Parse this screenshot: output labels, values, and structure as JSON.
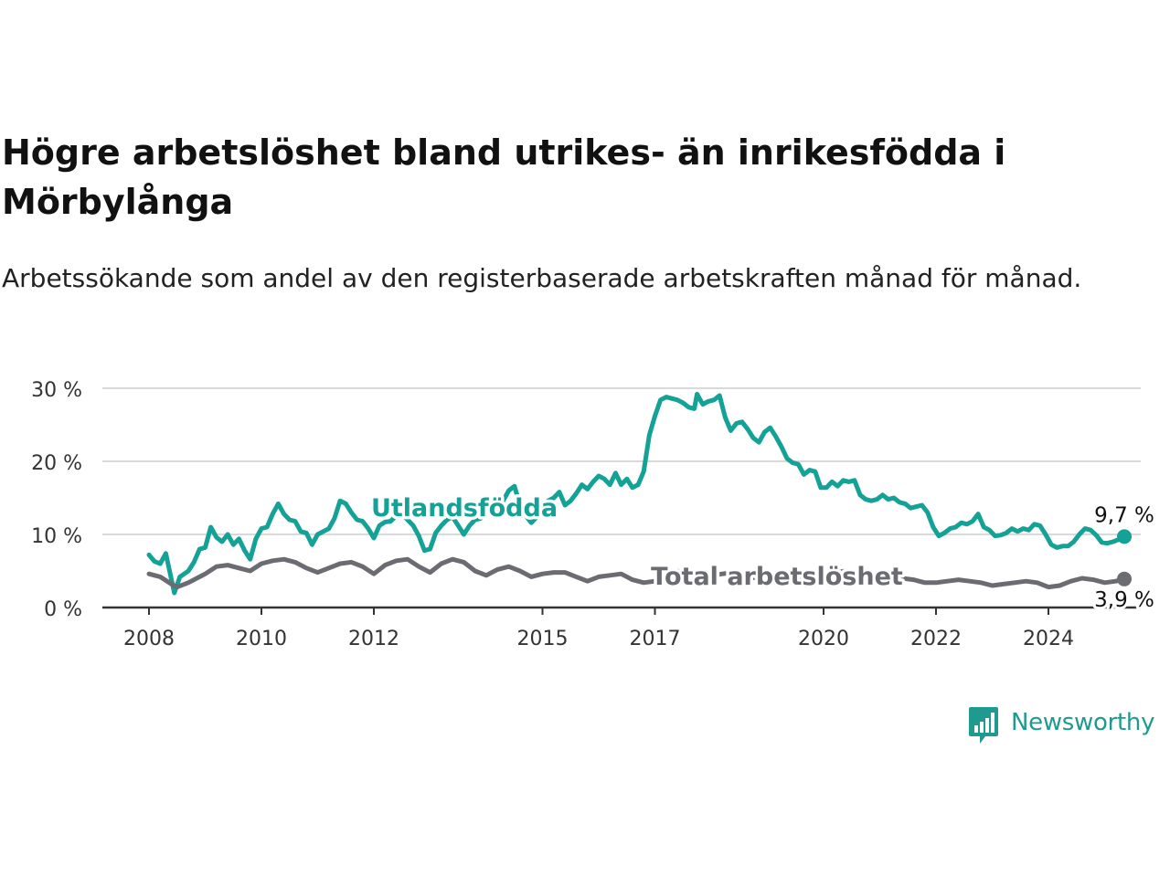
{
  "title": "Högre arbetslöshet bland utrikes- än inrikesfödda i Mörbylånga",
  "subtitle": "Arbetssökande som andel av den registerbaserade arbetskraften månad för månad.",
  "brand": {
    "name": "Newsworthy",
    "color": "#1f9a8e",
    "icon": "newsworthy-logo-icon"
  },
  "chart_data": {
    "type": "line",
    "ylim": [
      0,
      30
    ],
    "y_ticks": [
      0,
      10,
      20,
      30
    ],
    "y_tick_labels": [
      "0 %",
      "10 %",
      "20 %",
      "30 %"
    ],
    "xlim": [
      2008,
      2024.9
    ],
    "x_ticks": [
      2008,
      2010,
      2012,
      2015,
      2017,
      2020,
      2022,
      2024
    ],
    "x_tick_labels": [
      "2008",
      "2010",
      "2012",
      "2015",
      "2017",
      "2020",
      "2022",
      "2024"
    ],
    "grid": true,
    "series": [
      {
        "name": "Utlandsfödda",
        "color": "#14a196",
        "end_label": "9,7 %",
        "points": [
          [
            2008.0,
            7.2
          ],
          [
            2008.1,
            6.3
          ],
          [
            2008.2,
            6.0
          ],
          [
            2008.3,
            7.4
          ],
          [
            2008.4,
            3.8
          ],
          [
            2008.45,
            2.0
          ],
          [
            2008.55,
            4.2
          ],
          [
            2008.7,
            5.0
          ],
          [
            2008.8,
            6.2
          ],
          [
            2008.9,
            8.0
          ],
          [
            2009.0,
            8.2
          ],
          [
            2009.1,
            11.0
          ],
          [
            2009.2,
            9.6
          ],
          [
            2009.3,
            9.0
          ],
          [
            2009.4,
            10.0
          ],
          [
            2009.5,
            8.6
          ],
          [
            2009.6,
            9.4
          ],
          [
            2009.7,
            7.8
          ],
          [
            2009.8,
            6.6
          ],
          [
            2009.9,
            9.4
          ],
          [
            2010.0,
            10.8
          ],
          [
            2010.1,
            11.0
          ],
          [
            2010.2,
            12.8
          ],
          [
            2010.3,
            14.2
          ],
          [
            2010.4,
            12.8
          ],
          [
            2010.5,
            12.0
          ],
          [
            2010.6,
            11.8
          ],
          [
            2010.7,
            10.4
          ],
          [
            2010.8,
            10.2
          ],
          [
            2010.9,
            8.6
          ],
          [
            2011.0,
            10.0
          ],
          [
            2011.1,
            10.4
          ],
          [
            2011.2,
            10.8
          ],
          [
            2011.3,
            12.2
          ],
          [
            2011.4,
            14.6
          ],
          [
            2011.5,
            14.2
          ],
          [
            2011.6,
            13.0
          ],
          [
            2011.7,
            12.0
          ],
          [
            2011.8,
            11.8
          ],
          [
            2011.9,
            10.8
          ],
          [
            2012.0,
            9.5
          ],
          [
            2012.1,
            11.2
          ],
          [
            2012.2,
            11.7
          ],
          [
            2012.3,
            11.8
          ],
          [
            2012.4,
            12.6
          ],
          [
            2012.5,
            12.8
          ],
          [
            2012.6,
            12.0
          ],
          [
            2012.7,
            11.2
          ],
          [
            2012.8,
            9.8
          ],
          [
            2012.9,
            7.8
          ],
          [
            2013.0,
            8.0
          ],
          [
            2013.1,
            10.2
          ],
          [
            2013.2,
            11.2
          ],
          [
            2013.3,
            12.0
          ],
          [
            2013.4,
            12.4
          ],
          [
            2013.5,
            11.2
          ],
          [
            2013.6,
            10.0
          ],
          [
            2013.7,
            11.2
          ],
          [
            2013.8,
            12.0
          ],
          [
            2013.9,
            12.2
          ],
          [
            2014.0,
            13.0
          ],
          [
            2014.1,
            13.2
          ],
          [
            2014.2,
            13.8
          ],
          [
            2014.3,
            14.6
          ],
          [
            2014.4,
            16.0
          ],
          [
            2014.5,
            16.6
          ],
          [
            2014.6,
            14.0
          ],
          [
            2014.7,
            12.6
          ],
          [
            2014.8,
            11.6
          ],
          [
            2014.9,
            12.4
          ],
          [
            2015.0,
            13.2
          ],
          [
            2015.1,
            14.6
          ],
          [
            2015.2,
            15.0
          ],
          [
            2015.3,
            15.8
          ],
          [
            2015.4,
            14.0
          ],
          [
            2015.5,
            14.6
          ],
          [
            2015.6,
            15.6
          ],
          [
            2015.7,
            16.8
          ],
          [
            2015.8,
            16.2
          ],
          [
            2015.9,
            17.2
          ],
          [
            2016.0,
            18.0
          ],
          [
            2016.1,
            17.6
          ],
          [
            2016.2,
            16.8
          ],
          [
            2016.3,
            18.4
          ],
          [
            2016.4,
            16.8
          ],
          [
            2016.5,
            17.6
          ],
          [
            2016.6,
            16.4
          ],
          [
            2016.7,
            16.8
          ],
          [
            2016.8,
            18.6
          ],
          [
            2016.9,
            23.6
          ],
          [
            2017.0,
            26.2
          ],
          [
            2017.1,
            28.4
          ],
          [
            2017.2,
            28.8
          ],
          [
            2017.3,
            28.6
          ],
          [
            2017.4,
            28.4
          ],
          [
            2017.5,
            28.0
          ],
          [
            2017.6,
            27.4
          ],
          [
            2017.7,
            27.2
          ],
          [
            2017.75,
            29.2
          ],
          [
            2017.85,
            27.8
          ],
          [
            2017.95,
            28.2
          ],
          [
            2018.05,
            28.4
          ],
          [
            2018.15,
            29.0
          ],
          [
            2018.25,
            26.0
          ],
          [
            2018.35,
            24.2
          ],
          [
            2018.45,
            25.2
          ],
          [
            2018.55,
            25.4
          ],
          [
            2018.65,
            24.4
          ],
          [
            2018.75,
            23.2
          ],
          [
            2018.85,
            22.6
          ],
          [
            2018.95,
            24.0
          ],
          [
            2019.05,
            24.6
          ],
          [
            2019.15,
            23.4
          ],
          [
            2019.25,
            22.0
          ],
          [
            2019.35,
            20.4
          ],
          [
            2019.45,
            19.8
          ],
          [
            2019.55,
            19.6
          ],
          [
            2019.65,
            18.2
          ],
          [
            2019.75,
            18.8
          ],
          [
            2019.85,
            18.6
          ],
          [
            2019.95,
            16.4
          ],
          [
            2020.05,
            16.4
          ],
          [
            2020.15,
            17.2
          ],
          [
            2020.25,
            16.6
          ],
          [
            2020.35,
            17.4
          ],
          [
            2020.45,
            17.2
          ],
          [
            2020.55,
            17.4
          ],
          [
            2020.65,
            15.4
          ],
          [
            2020.75,
            14.8
          ],
          [
            2020.85,
            14.6
          ],
          [
            2020.95,
            14.8
          ],
          [
            2021.05,
            15.4
          ],
          [
            2021.15,
            14.8
          ],
          [
            2021.25,
            15.0
          ],
          [
            2021.35,
            14.4
          ],
          [
            2021.45,
            14.2
          ],
          [
            2021.55,
            13.6
          ],
          [
            2021.65,
            13.8
          ],
          [
            2021.75,
            14.0
          ],
          [
            2021.85,
            13.0
          ],
          [
            2021.95,
            11.0
          ],
          [
            2022.05,
            9.8
          ],
          [
            2022.15,
            10.2
          ],
          [
            2022.25,
            10.8
          ],
          [
            2022.35,
            11.0
          ],
          [
            2022.45,
            11.6
          ],
          [
            2022.55,
            11.4
          ],
          [
            2022.65,
            11.8
          ],
          [
            2022.75,
            12.8
          ],
          [
            2022.85,
            11.0
          ],
          [
            2022.95,
            10.6
          ],
          [
            2023.05,
            9.8
          ],
          [
            2023.15,
            9.9
          ],
          [
            2023.25,
            10.2
          ],
          [
            2023.35,
            10.8
          ],
          [
            2023.45,
            10.4
          ],
          [
            2023.55,
            10.8
          ],
          [
            2023.65,
            10.6
          ],
          [
            2023.75,
            11.4
          ],
          [
            2023.85,
            11.2
          ],
          [
            2023.95,
            10.0
          ],
          [
            2024.05,
            8.6
          ],
          [
            2024.15,
            8.2
          ],
          [
            2024.25,
            8.4
          ],
          [
            2024.35,
            8.4
          ],
          [
            2024.45,
            9.0
          ],
          [
            2024.55,
            10.0
          ],
          [
            2024.65,
            10.8
          ],
          [
            2024.75,
            10.6
          ],
          [
            2024.85,
            9.9
          ],
          [
            2024.95,
            8.9
          ],
          [
            2025.05,
            8.8
          ],
          [
            2025.15,
            9.0
          ],
          [
            2025.25,
            9.3
          ],
          [
            2025.35,
            9.7
          ]
        ]
      },
      {
        "name": "Total arbetslöshet",
        "color": "#6b6b72",
        "end_label": "3,9 %",
        "points": [
          [
            2008.0,
            4.6
          ],
          [
            2008.2,
            4.2
          ],
          [
            2008.4,
            3.2
          ],
          [
            2008.5,
            2.8
          ],
          [
            2008.7,
            3.4
          ],
          [
            2008.9,
            4.2
          ],
          [
            2009.0,
            4.6
          ],
          [
            2009.2,
            5.6
          ],
          [
            2009.4,
            5.8
          ],
          [
            2009.6,
            5.4
          ],
          [
            2009.8,
            5.0
          ],
          [
            2010.0,
            6.0
          ],
          [
            2010.2,
            6.4
          ],
          [
            2010.4,
            6.6
          ],
          [
            2010.6,
            6.2
          ],
          [
            2010.8,
            5.4
          ],
          [
            2011.0,
            4.8
          ],
          [
            2011.2,
            5.4
          ],
          [
            2011.4,
            6.0
          ],
          [
            2011.6,
            6.2
          ],
          [
            2011.8,
            5.6
          ],
          [
            2012.0,
            4.6
          ],
          [
            2012.2,
            5.8
          ],
          [
            2012.4,
            6.4
          ],
          [
            2012.6,
            6.6
          ],
          [
            2012.8,
            5.6
          ],
          [
            2013.0,
            4.8
          ],
          [
            2013.2,
            6.0
          ],
          [
            2013.4,
            6.6
          ],
          [
            2013.6,
            6.2
          ],
          [
            2013.8,
            5.0
          ],
          [
            2014.0,
            4.4
          ],
          [
            2014.2,
            5.2
          ],
          [
            2014.4,
            5.6
          ],
          [
            2014.6,
            5.0
          ],
          [
            2014.8,
            4.2
          ],
          [
            2015.0,
            4.6
          ],
          [
            2015.2,
            4.8
          ],
          [
            2015.4,
            4.8
          ],
          [
            2015.6,
            4.2
          ],
          [
            2015.8,
            3.6
          ],
          [
            2016.0,
            4.2
          ],
          [
            2016.2,
            4.4
          ],
          [
            2016.4,
            4.6
          ],
          [
            2016.6,
            3.8
          ],
          [
            2016.8,
            3.4
          ],
          [
            2017.0,
            3.6
          ],
          [
            2017.2,
            4.6
          ],
          [
            2017.4,
            5.0
          ],
          [
            2017.6,
            4.6
          ],
          [
            2017.8,
            4.2
          ],
          [
            2018.0,
            4.4
          ],
          [
            2018.2,
            4.6
          ],
          [
            2018.4,
            4.8
          ],
          [
            2018.6,
            4.4
          ],
          [
            2018.8,
            4.0
          ],
          [
            2019.0,
            4.2
          ],
          [
            2019.2,
            4.4
          ],
          [
            2019.4,
            4.6
          ],
          [
            2019.6,
            4.2
          ],
          [
            2019.8,
            4.0
          ],
          [
            2020.0,
            4.4
          ],
          [
            2020.2,
            4.8
          ],
          [
            2020.4,
            5.0
          ],
          [
            2020.6,
            4.6
          ],
          [
            2020.8,
            4.2
          ],
          [
            2021.0,
            4.0
          ],
          [
            2021.2,
            4.2
          ],
          [
            2021.4,
            4.0
          ],
          [
            2021.6,
            3.8
          ],
          [
            2021.8,
            3.4
          ],
          [
            2022.0,
            3.4
          ],
          [
            2022.2,
            3.6
          ],
          [
            2022.4,
            3.8
          ],
          [
            2022.6,
            3.6
          ],
          [
            2022.8,
            3.4
          ],
          [
            2023.0,
            3.0
          ],
          [
            2023.2,
            3.2
          ],
          [
            2023.4,
            3.4
          ],
          [
            2023.6,
            3.6
          ],
          [
            2023.8,
            3.4
          ],
          [
            2024.0,
            2.8
          ],
          [
            2024.2,
            3.0
          ],
          [
            2024.4,
            3.6
          ],
          [
            2024.6,
            4.0
          ],
          [
            2024.8,
            3.8
          ],
          [
            2025.0,
            3.4
          ],
          [
            2025.2,
            3.6
          ],
          [
            2025.35,
            3.9
          ]
        ]
      }
    ]
  }
}
